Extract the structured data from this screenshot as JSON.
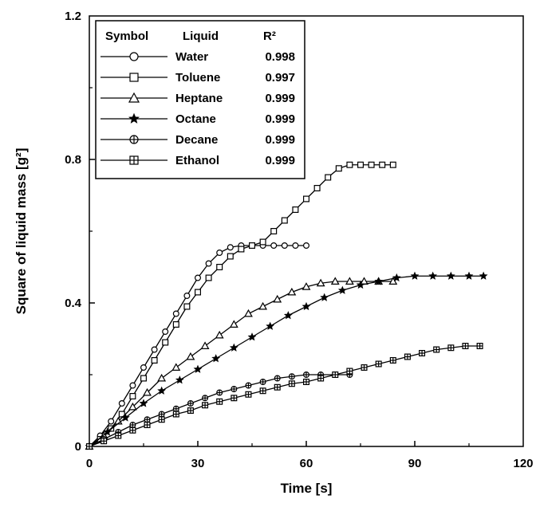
{
  "chart_data": {
    "type": "line",
    "title": "",
    "xlabel": "Time [s]",
    "ylabel": "Square of liquid mass [g²]",
    "xlim": [
      0,
      120
    ],
    "ylim": [
      0,
      1.2
    ],
    "x_ticks": [
      "0",
      "30",
      "60",
      "90",
      "120"
    ],
    "y_ticks": [
      "0",
      "0.4",
      "0.8",
      "1.2"
    ],
    "grid": false,
    "legend": {
      "placement": "top-left",
      "headers": {
        "symbol": "Symbol",
        "liquid": "Liquid",
        "r2": "R²"
      }
    },
    "series": [
      {
        "name": "Water",
        "r2": "0.998",
        "marker": "circle",
        "points": [
          [
            0,
            0
          ],
          [
            3,
            0.03
          ],
          [
            6,
            0.07
          ],
          [
            9,
            0.12
          ],
          [
            12,
            0.17
          ],
          [
            15,
            0.22
          ],
          [
            18,
            0.27
          ],
          [
            21,
            0.32
          ],
          [
            24,
            0.37
          ],
          [
            27,
            0.42
          ],
          [
            30,
            0.47
          ],
          [
            33,
            0.51
          ],
          [
            36,
            0.54
          ],
          [
            39,
            0.555
          ],
          [
            42,
            0.56
          ],
          [
            45,
            0.56
          ],
          [
            48,
            0.56
          ],
          [
            51,
            0.56
          ],
          [
            54,
            0.56
          ],
          [
            57,
            0.56
          ],
          [
            60,
            0.56
          ]
        ]
      },
      {
        "name": "Toluene",
        "r2": "0.997",
        "marker": "square",
        "points": [
          [
            0,
            0
          ],
          [
            3,
            0.02
          ],
          [
            6,
            0.05
          ],
          [
            9,
            0.09
          ],
          [
            12,
            0.14
          ],
          [
            15,
            0.19
          ],
          [
            18,
            0.24
          ],
          [
            21,
            0.29
          ],
          [
            24,
            0.34
          ],
          [
            27,
            0.39
          ],
          [
            30,
            0.43
          ],
          [
            33,
            0.47
          ],
          [
            36,
            0.5
          ],
          [
            39,
            0.53
          ],
          [
            42,
            0.55
          ],
          [
            45,
            0.56
          ],
          [
            48,
            0.57
          ],
          [
            51,
            0.6
          ],
          [
            54,
            0.63
          ],
          [
            57,
            0.66
          ],
          [
            60,
            0.69
          ],
          [
            63,
            0.72
          ],
          [
            66,
            0.75
          ],
          [
            69,
            0.775
          ],
          [
            72,
            0.785
          ],
          [
            75,
            0.785
          ],
          [
            78,
            0.785
          ],
          [
            81,
            0.785
          ],
          [
            84,
            0.785
          ]
        ]
      },
      {
        "name": "Heptane",
        "r2": "0.999",
        "marker": "triangle",
        "points": [
          [
            0,
            0
          ],
          [
            4,
            0.03
          ],
          [
            8,
            0.07
          ],
          [
            12,
            0.11
          ],
          [
            16,
            0.15
          ],
          [
            20,
            0.19
          ],
          [
            24,
            0.22
          ],
          [
            28,
            0.25
          ],
          [
            32,
            0.28
          ],
          [
            36,
            0.31
          ],
          [
            40,
            0.34
          ],
          [
            44,
            0.37
          ],
          [
            48,
            0.39
          ],
          [
            52,
            0.41
          ],
          [
            56,
            0.43
          ],
          [
            60,
            0.445
          ],
          [
            64,
            0.455
          ],
          [
            68,
            0.46
          ],
          [
            72,
            0.46
          ],
          [
            76,
            0.46
          ],
          [
            80,
            0.46
          ],
          [
            84,
            0.46
          ]
        ]
      },
      {
        "name": "Octane",
        "r2": "0.999",
        "marker": "star",
        "points": [
          [
            0,
            0
          ],
          [
            5,
            0.04
          ],
          [
            10,
            0.08
          ],
          [
            15,
            0.12
          ],
          [
            20,
            0.155
          ],
          [
            25,
            0.185
          ],
          [
            30,
            0.215
          ],
          [
            35,
            0.245
          ],
          [
            40,
            0.275
          ],
          [
            45,
            0.305
          ],
          [
            50,
            0.335
          ],
          [
            55,
            0.365
          ],
          [
            60,
            0.39
          ],
          [
            65,
            0.415
          ],
          [
            70,
            0.435
          ],
          [
            75,
            0.45
          ],
          [
            80,
            0.46
          ],
          [
            85,
            0.47
          ],
          [
            90,
            0.475
          ],
          [
            95,
            0.475
          ],
          [
            100,
            0.475
          ],
          [
            105,
            0.475
          ],
          [
            109,
            0.475
          ]
        ]
      },
      {
        "name": "Decane",
        "r2": "0.999",
        "marker": "circle-plus",
        "points": [
          [
            0,
            0
          ],
          [
            4,
            0.02
          ],
          [
            8,
            0.04
          ],
          [
            12,
            0.06
          ],
          [
            16,
            0.075
          ],
          [
            20,
            0.09
          ],
          [
            24,
            0.105
          ],
          [
            28,
            0.12
          ],
          [
            32,
            0.135
          ],
          [
            36,
            0.15
          ],
          [
            40,
            0.16
          ],
          [
            44,
            0.17
          ],
          [
            48,
            0.18
          ],
          [
            52,
            0.19
          ],
          [
            56,
            0.195
          ],
          [
            60,
            0.2
          ],
          [
            64,
            0.2
          ],
          [
            68,
            0.2
          ],
          [
            72,
            0.2
          ]
        ]
      },
      {
        "name": "Ethanol",
        "r2": "0.999",
        "marker": "square-plus",
        "points": [
          [
            0,
            0
          ],
          [
            4,
            0.015
          ],
          [
            8,
            0.03
          ],
          [
            12,
            0.045
          ],
          [
            16,
            0.06
          ],
          [
            20,
            0.075
          ],
          [
            24,
            0.09
          ],
          [
            28,
            0.1
          ],
          [
            32,
            0.115
          ],
          [
            36,
            0.125
          ],
          [
            40,
            0.135
          ],
          [
            44,
            0.145
          ],
          [
            48,
            0.155
          ],
          [
            52,
            0.165
          ],
          [
            56,
            0.175
          ],
          [
            60,
            0.18
          ],
          [
            64,
            0.19
          ],
          [
            68,
            0.2
          ],
          [
            72,
            0.21
          ],
          [
            76,
            0.22
          ],
          [
            80,
            0.23
          ],
          [
            84,
            0.24
          ],
          [
            88,
            0.25
          ],
          [
            92,
            0.26
          ],
          [
            96,
            0.27
          ],
          [
            100,
            0.275
          ],
          [
            104,
            0.28
          ],
          [
            108,
            0.28
          ]
        ]
      }
    ]
  }
}
